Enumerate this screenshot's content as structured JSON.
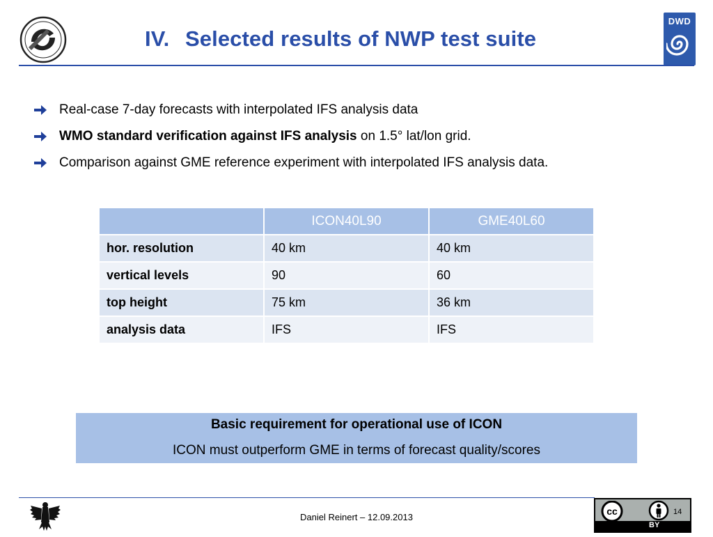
{
  "header": {
    "title_number": "IV.",
    "title_text": "Selected results of NWP test suite",
    "logo_right_text": "DWD"
  },
  "bullets": [
    {
      "plain": "Real-case 7-day forecasts with interpolated IFS analysis data"
    },
    {
      "bold": "WMO standard verification against IFS analysis",
      "plain": " on 1.5° lat/lon grid."
    },
    {
      "plain": "Comparison against GME reference experiment with interpolated IFS analysis data."
    }
  ],
  "table": {
    "headers": [
      "",
      "ICON40L90",
      "GME40L60"
    ],
    "rows": [
      [
        "hor. resolution",
        "40 km",
        "40 km"
      ],
      [
        "vertical levels",
        "90",
        "60"
      ],
      [
        "top height",
        "75 km",
        "36 km"
      ],
      [
        "analysis data",
        "IFS",
        "IFS"
      ]
    ]
  },
  "requirement": {
    "heading": "Basic requirement for operational use of ICON",
    "text": "ICON must outperform GME in terms of forecast quality/scores"
  },
  "footer": {
    "author_date": "Daniel Reinert – 12.09.2013",
    "license_label": "BY",
    "page_number": "14"
  },
  "colors": {
    "accent": "#2a4ea8",
    "table_header": "#a7c0e6",
    "row_odd": "#dbe4f1",
    "row_even": "#eef2f8"
  }
}
